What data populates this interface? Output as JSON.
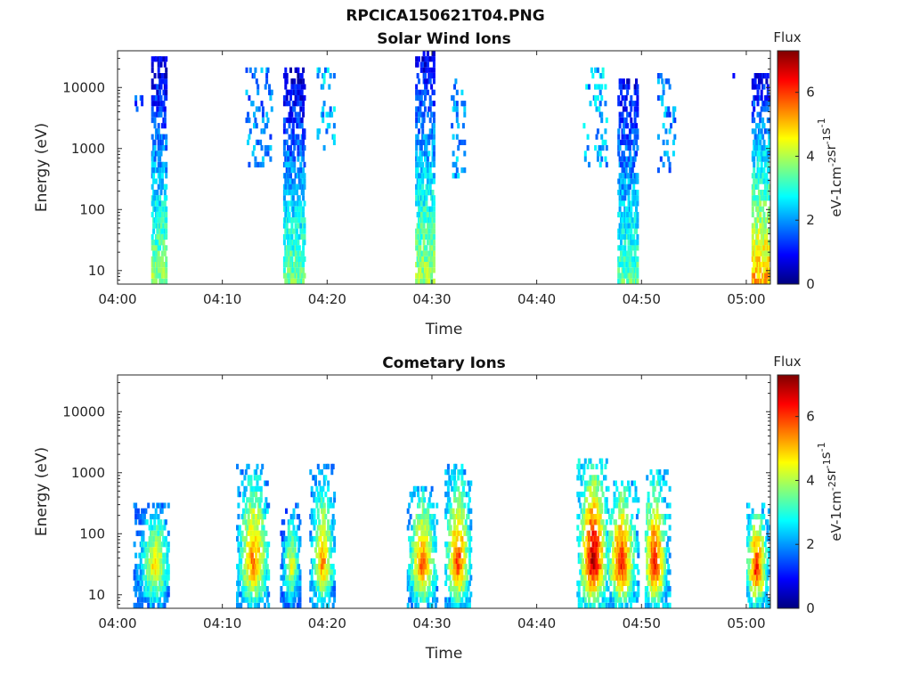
{
  "figure": {
    "title": "RPCICA150621T04.PNG"
  },
  "colormap": {
    "name": "jet",
    "stops": [
      "#00007f",
      "#0000ff",
      "#007fff",
      "#00ffff",
      "#7fff7f",
      "#ffff00",
      "#ff7f00",
      "#ff0000",
      "#7f0000"
    ]
  },
  "chart_data": [
    {
      "type": "heatmap",
      "title": "Solar Wind Ions",
      "xlabel": "Time",
      "ylabel": "Energy (eV)",
      "x_ticks": [
        "04:00",
        "04:10",
        "04:20",
        "04:30",
        "04:40",
        "04:50",
        "05:00"
      ],
      "x_tick_minutes": [
        0,
        10,
        20,
        30,
        40,
        50,
        60
      ],
      "xlim_minutes": [
        0,
        62.3
      ],
      "y_scale": "log",
      "y_ticks": [
        "10",
        "100",
        "1000",
        "10000"
      ],
      "y_tick_values": [
        10,
        100,
        1000,
        10000
      ],
      "ylim": [
        6,
        40000
      ],
      "colorbar": {
        "title": "Flux",
        "label": "eV-1 cm-2 sr-1 s-1",
        "ticks": [
          "0",
          "2",
          "4",
          "6"
        ],
        "tick_values": [
          0,
          2,
          4,
          6
        ],
        "range": [
          0,
          7.3
        ]
      },
      "grid": false,
      "bursts": [
        {
          "t_start": 3.2,
          "t_end": 4.6,
          "e_low": 6,
          "e_high": 30000,
          "flux_low_energy": 3.8,
          "flux_high_energy": 0.6
        },
        {
          "t_start": 15.8,
          "t_end": 17.8,
          "e_low": 6,
          "e_high": 20000,
          "flux_low_energy": 3.6,
          "flux_high_energy": 0.5
        },
        {
          "t_start": 28.4,
          "t_end": 30.2,
          "e_low": 6,
          "e_high": 40000,
          "flux_low_energy": 4.0,
          "flux_high_energy": 0.6
        },
        {
          "t_start": 47.7,
          "t_end": 49.6,
          "e_low": 6,
          "e_high": 15000,
          "flux_low_energy": 3.4,
          "flux_high_energy": 0.7
        },
        {
          "t_start": 60.5,
          "t_end": 62.2,
          "e_low": 6,
          "e_high": 18000,
          "flux_low_energy": 5.2,
          "flux_high_energy": 0.7
        }
      ],
      "scatter": [
        {
          "t_start": 1.5,
          "t_end": 2.4,
          "e_low": 4000,
          "e_high": 8000,
          "flux": 1.3
        },
        {
          "t_start": 12.2,
          "t_end": 14.6,
          "e_low": 500,
          "e_high": 20000,
          "flux": 1.8
        },
        {
          "t_start": 19.0,
          "t_end": 20.6,
          "e_low": 1000,
          "e_high": 20000,
          "flux": 2.2
        },
        {
          "t_start": 31.8,
          "t_end": 33.0,
          "e_low": 300,
          "e_high": 15000,
          "flux": 2.0
        },
        {
          "t_start": 44.4,
          "t_end": 46.6,
          "e_low": 500,
          "e_high": 20000,
          "flux": 2.2
        },
        {
          "t_start": 51.5,
          "t_end": 53.2,
          "e_low": 400,
          "e_high": 18000,
          "flux": 1.9
        },
        {
          "t_start": 58.2,
          "t_end": 58.8,
          "e_low": 14000,
          "e_high": 18000,
          "flux": 1.0
        }
      ]
    },
    {
      "type": "heatmap",
      "title": "Cometary Ions",
      "xlabel": "Time",
      "ylabel": "Energy (eV)",
      "x_ticks": [
        "04:00",
        "04:10",
        "04:20",
        "04:30",
        "04:40",
        "04:50",
        "05:00"
      ],
      "x_tick_minutes": [
        0,
        10,
        20,
        30,
        40,
        50,
        60
      ],
      "xlim_minutes": [
        0,
        62.3
      ],
      "y_scale": "log",
      "y_ticks": [
        "10",
        "100",
        "1000",
        "10000"
      ],
      "y_tick_values": [
        10,
        100,
        1000,
        10000
      ],
      "ylim": [
        6,
        40000
      ],
      "colorbar": {
        "title": "Flux",
        "label": "eV-1 cm-2 sr-1 s-1",
        "ticks": [
          "0",
          "2",
          "4",
          "6"
        ],
        "tick_values": [
          0,
          2,
          4,
          6
        ],
        "range": [
          0,
          7.3
        ]
      },
      "grid": false,
      "bursts": [
        {
          "t_start": 1.5,
          "t_end": 4.8,
          "center_t": 3.5,
          "peak_energy": 30,
          "e_high": 300,
          "peak_flux": 5.0
        },
        {
          "t_start": 11.3,
          "t_end": 14.4,
          "center_t": 12.9,
          "peak_energy": 30,
          "e_high": 1500,
          "peak_flux": 5.8
        },
        {
          "t_start": 15.5,
          "t_end": 17.4,
          "center_t": 16.5,
          "peak_energy": 30,
          "e_high": 300,
          "peak_flux": 4.6
        },
        {
          "t_start": 18.3,
          "t_end": 20.6,
          "center_t": 19.5,
          "peak_energy": 30,
          "e_high": 1300,
          "peak_flux": 5.5
        },
        {
          "t_start": 27.6,
          "t_end": 30.4,
          "center_t": 29.0,
          "peak_energy": 30,
          "e_high": 600,
          "peak_flux": 6.0
        },
        {
          "t_start": 31.2,
          "t_end": 33.7,
          "center_t": 32.4,
          "peak_energy": 30,
          "e_high": 1300,
          "peak_flux": 6.2
        },
        {
          "t_start": 43.8,
          "t_end": 46.6,
          "center_t": 45.3,
          "peak_energy": 35,
          "e_high": 1600,
          "peak_flux": 7.3
        },
        {
          "t_start": 46.7,
          "t_end": 49.6,
          "center_t": 48.0,
          "peak_energy": 30,
          "e_high": 800,
          "peak_flux": 6.5
        },
        {
          "t_start": 50.3,
          "t_end": 52.6,
          "center_t": 51.2,
          "peak_energy": 30,
          "e_high": 1100,
          "peak_flux": 6.6
        },
        {
          "t_start": 60.0,
          "t_end": 62.2,
          "center_t": 60.9,
          "peak_energy": 25,
          "e_high": 300,
          "peak_flux": 6.4
        }
      ]
    }
  ]
}
